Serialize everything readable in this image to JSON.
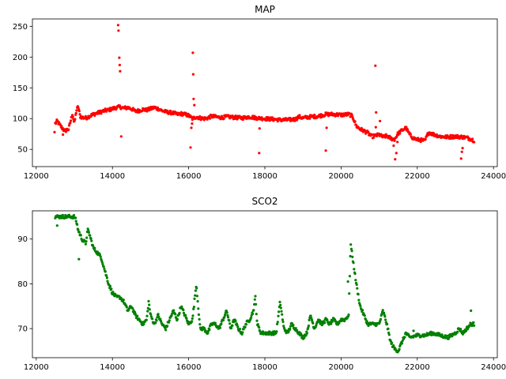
{
  "chart_data": [
    {
      "type": "scatter",
      "title": "MAP",
      "xlabel": "",
      "ylabel": "",
      "xlim": [
        11900,
        24100
      ],
      "ylim": [
        22,
        262
      ],
      "xticks": [
        12000,
        14000,
        16000,
        18000,
        20000,
        22000,
        24000
      ],
      "yticks": [
        50,
        100,
        150,
        200,
        250
      ],
      "color": "#ff0000",
      "profile": [
        [
          12500,
          92
        ],
        [
          12550,
          96
        ],
        [
          12650,
          87
        ],
        [
          12750,
          80
        ],
        [
          12850,
          83
        ],
        [
          12950,
          108
        ],
        [
          13000,
          92
        ],
        [
          13050,
          112
        ],
        [
          13100,
          120
        ],
        [
          13150,
          104
        ],
        [
          13200,
          102
        ],
        [
          13300,
          101
        ],
        [
          13400,
          104
        ],
        [
          13500,
          107
        ],
        [
          13600,
          109
        ],
        [
          13700,
          111
        ],
        [
          13800,
          113
        ],
        [
          13900,
          114
        ],
        [
          14000,
          116
        ],
        [
          14100,
          118
        ],
        [
          14200,
          119
        ],
        [
          14300,
          117
        ],
        [
          14400,
          118
        ],
        [
          14500,
          116
        ],
        [
          14600,
          112
        ],
        [
          14700,
          113
        ],
        [
          14800,
          115
        ],
        [
          14900,
          114
        ],
        [
          15000,
          116
        ],
        [
          15100,
          118
        ],
        [
          15200,
          116
        ],
        [
          15300,
          113
        ],
        [
          15400,
          111
        ],
        [
          15500,
          110
        ],
        [
          15600,
          109
        ],
        [
          15700,
          107
        ],
        [
          15800,
          108
        ],
        [
          15900,
          107
        ],
        [
          16000,
          105
        ],
        [
          16100,
          100
        ],
        [
          16200,
          103
        ],
        [
          16300,
          101
        ],
        [
          16400,
          100
        ],
        [
          16500,
          101
        ],
        [
          16600,
          104
        ],
        [
          16700,
          103
        ],
        [
          16800,
          102
        ],
        [
          16900,
          102
        ],
        [
          17000,
          103
        ],
        [
          17200,
          102
        ],
        [
          17400,
          101
        ],
        [
          17600,
          103
        ],
        [
          17800,
          101
        ],
        [
          18000,
          100
        ],
        [
          18200,
          99
        ],
        [
          18400,
          98
        ],
        [
          18600,
          98
        ],
        [
          18800,
          99
        ],
        [
          18900,
          103
        ],
        [
          19000,
          101
        ],
        [
          19200,
          103
        ],
        [
          19400,
          104
        ],
        [
          19600,
          107
        ],
        [
          19800,
          107
        ],
        [
          20000,
          106
        ],
        [
          20200,
          107
        ],
        [
          20300,
          104
        ],
        [
          20400,
          88
        ],
        [
          20500,
          83
        ],
        [
          20600,
          80
        ],
        [
          20700,
          77
        ],
        [
          20800,
          71
        ],
        [
          20900,
          72
        ],
        [
          21000,
          74
        ],
        [
          21100,
          70
        ],
        [
          21200,
          72
        ],
        [
          21300,
          68
        ],
        [
          21400,
          66
        ],
        [
          21500,
          76
        ],
        [
          21600,
          81
        ],
        [
          21700,
          85
        ],
        [
          21800,
          74
        ],
        [
          21900,
          68
        ],
        [
          22000,
          66
        ],
        [
          22100,
          65
        ],
        [
          22200,
          64
        ],
        [
          22300,
          78
        ],
        [
          22400,
          75
        ],
        [
          22600,
          71
        ],
        [
          22800,
          70
        ],
        [
          23000,
          71
        ],
        [
          23200,
          70
        ],
        [
          23300,
          69
        ],
        [
          23400,
          67
        ],
        [
          23500,
          64
        ]
      ],
      "outliers": [
        [
          12480,
          78
        ],
        [
          12700,
          74
        ],
        [
          14150,
          252
        ],
        [
          14160,
          243
        ],
        [
          14180,
          199
        ],
        [
          14190,
          187
        ],
        [
          14200,
          177
        ],
        [
          14230,
          71
        ],
        [
          16050,
          53
        ],
        [
          16070,
          85
        ],
        [
          16090,
          92
        ],
        [
          16110,
          207
        ],
        [
          16120,
          172
        ],
        [
          16130,
          132
        ],
        [
          16150,
          122
        ],
        [
          17850,
          44
        ],
        [
          17860,
          84
        ],
        [
          19600,
          48
        ],
        [
          19620,
          85
        ],
        [
          20900,
          186
        ],
        [
          20920,
          110
        ],
        [
          20910,
          86
        ],
        [
          21020,
          96
        ],
        [
          21380,
          56
        ],
        [
          21420,
          34
        ],
        [
          21450,
          44
        ],
        [
          21480,
          62
        ],
        [
          23150,
          35
        ],
        [
          23170,
          46
        ],
        [
          23190,
          52
        ]
      ]
    },
    {
      "type": "scatter",
      "title": "SCO2",
      "xlabel": "",
      "ylabel": "",
      "xlim": [
        11900,
        24100
      ],
      "ylim": [
        63.5,
        96.3
      ],
      "xticks": [
        12000,
        14000,
        16000,
        18000,
        20000,
        22000,
        24000
      ],
      "yticks": [
        70,
        80,
        90
      ],
      "color": "#008000",
      "profile": [
        [
          12500,
          95
        ],
        [
          13000,
          95
        ],
        [
          13050,
          94
        ],
        [
          13100,
          92
        ],
        [
          13200,
          90
        ],
        [
          13300,
          89
        ],
        [
          13350,
          92
        ],
        [
          13400,
          91
        ],
        [
          13500,
          88
        ],
        [
          13600,
          87
        ],
        [
          13700,
          86
        ],
        [
          13800,
          83
        ],
        [
          13900,
          80
        ],
        [
          14000,
          78
        ],
        [
          14100,
          77
        ],
        [
          14200,
          77
        ],
        [
          14300,
          76
        ],
        [
          14400,
          74
        ],
        [
          14500,
          75
        ],
        [
          14600,
          73
        ],
        [
          14700,
          72
        ],
        [
          14800,
          71
        ],
        [
          14900,
          72
        ],
        [
          14950,
          76
        ],
        [
          15000,
          73
        ],
        [
          15100,
          71
        ],
        [
          15200,
          73
        ],
        [
          15300,
          71
        ],
        [
          15400,
          70
        ],
        [
          15500,
          72
        ],
        [
          15600,
          74
        ],
        [
          15700,
          72
        ],
        [
          15800,
          75
        ],
        [
          15900,
          73
        ],
        [
          16000,
          71
        ],
        [
          16100,
          72
        ],
        [
          16200,
          80
        ],
        [
          16250,
          75
        ],
        [
          16300,
          70
        ],
        [
          16400,
          70
        ],
        [
          16500,
          69
        ],
        [
          16600,
          71
        ],
        [
          16700,
          71
        ],
        [
          16800,
          70
        ],
        [
          16900,
          72
        ],
        [
          17000,
          74
        ],
        [
          17100,
          70
        ],
        [
          17200,
          72
        ],
        [
          17300,
          70
        ],
        [
          17400,
          69
        ],
        [
          17500,
          71
        ],
        [
          17600,
          72
        ],
        [
          17700,
          74
        ],
        [
          17750,
          77
        ],
        [
          17800,
          71
        ],
        [
          17900,
          69
        ],
        [
          18000,
          69
        ],
        [
          18100,
          69
        ],
        [
          18200,
          69
        ],
        [
          18300,
          69
        ],
        [
          18400,
          76
        ],
        [
          18500,
          70
        ],
        [
          18600,
          69
        ],
        [
          18700,
          71
        ],
        [
          18800,
          70
        ],
        [
          18900,
          69
        ],
        [
          19000,
          68
        ],
        [
          19100,
          69
        ],
        [
          19200,
          73
        ],
        [
          19300,
          70
        ],
        [
          19400,
          72
        ],
        [
          19500,
          71
        ],
        [
          19600,
          72
        ],
        [
          19700,
          71
        ],
        [
          19800,
          72
        ],
        [
          19900,
          71
        ],
        [
          20000,
          72
        ],
        [
          20100,
          72
        ],
        [
          20200,
          73
        ],
        [
          20250,
          89
        ],
        [
          20300,
          86
        ],
        [
          20400,
          80
        ],
        [
          20500,
          75
        ],
        [
          20600,
          73
        ],
        [
          20700,
          71
        ],
        [
          20800,
          71
        ],
        [
          20900,
          71
        ],
        [
          21000,
          71
        ],
        [
          21100,
          74
        ],
        [
          21200,
          71
        ],
        [
          21300,
          67
        ],
        [
          21400,
          65.5
        ],
        [
          21500,
          65
        ],
        [
          21600,
          67
        ],
        [
          21700,
          69
        ],
        [
          21800,
          68
        ],
        [
          22000,
          68.5
        ],
        [
          22200,
          68.5
        ],
        [
          22400,
          69
        ],
        [
          22600,
          68.5
        ],
        [
          22800,
          68
        ],
        [
          23000,
          69
        ],
        [
          23100,
          70
        ],
        [
          23200,
          69
        ],
        [
          23300,
          70
        ],
        [
          23400,
          71
        ],
        [
          23500,
          71
        ]
      ],
      "outliers": [
        [
          12550,
          93
        ],
        [
          13120,
          85.5
        ],
        [
          20180,
          80.5
        ],
        [
          23410,
          74
        ],
        [
          21900,
          69.5
        ]
      ]
    }
  ]
}
